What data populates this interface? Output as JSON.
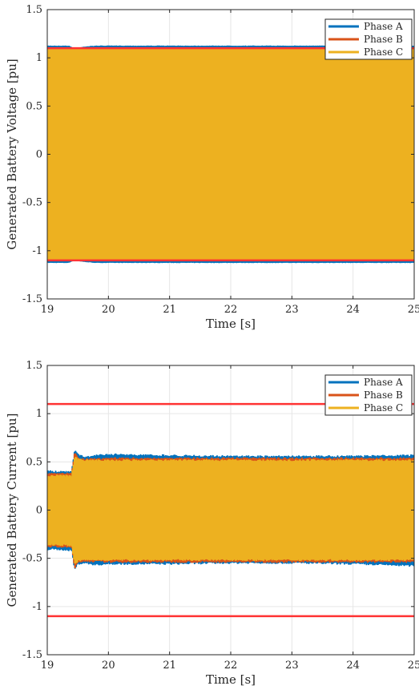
{
  "colors": {
    "phase_a": "#0072BD",
    "phase_b": "#D95319",
    "phase_c": "#EDB120",
    "limit": "#FF3333",
    "grid": "#E6E6E6",
    "axis": "#262626"
  },
  "chart_data": [
    {
      "type": "line",
      "title": "",
      "xlabel": "Time [s]",
      "ylabel": "Generated Battery Voltage [pu]",
      "xlim": [
        19,
        25
      ],
      "ylim": [
        -1.5,
        1.5
      ],
      "xticks": [
        19,
        20,
        21,
        22,
        23,
        24,
        25
      ],
      "yticks": [
        -1.5,
        -1,
        -0.5,
        0,
        0.5,
        1,
        1.5
      ],
      "xtick_labels": [
        "19",
        "20",
        "21",
        "22",
        "23",
        "24",
        "25"
      ],
      "ytick_labels": [
        "-1.5",
        "-1",
        "-0.5",
        "0",
        "0.5",
        "1",
        "1.5"
      ],
      "grid": true,
      "legend_position": "top-right",
      "legend": [
        "Phase A",
        "Phase B",
        "Phase C"
      ],
      "series": [
        {
          "name": "Phase A",
          "color": "#0072BD",
          "t": [
            19,
            19.2,
            19.35,
            19.45,
            19.5,
            19.6,
            19.8,
            20,
            21,
            22,
            23,
            24,
            25
          ],
          "upper": [
            1.12,
            1.12,
            1.12,
            1.09,
            1.1,
            1.11,
            1.12,
            1.12,
            1.12,
            1.12,
            1.12,
            1.12,
            1.12
          ],
          "lower": [
            -1.12,
            -1.12,
            -1.12,
            -1.09,
            -1.1,
            -1.11,
            -1.12,
            -1.12,
            -1.12,
            -1.12,
            -1.12,
            -1.12,
            -1.12
          ]
        },
        {
          "name": "Phase B",
          "color": "#D95319",
          "t": [
            19,
            20,
            21,
            22,
            23,
            24,
            25
          ],
          "upper": [
            1.1,
            1.1,
            1.1,
            1.1,
            1.1,
            1.1,
            1.1
          ],
          "lower": [
            -1.1,
            -1.1,
            -1.1,
            -1.1,
            -1.1,
            -1.1,
            -1.1
          ]
        },
        {
          "name": "Phase C",
          "color": "#EDB120",
          "t": [
            19,
            20,
            21,
            22,
            23,
            24,
            25
          ],
          "upper": [
            1.09,
            1.09,
            1.09,
            1.09,
            1.09,
            1.09,
            1.09
          ],
          "lower": [
            -1.09,
            -1.09,
            -1.09,
            -1.09,
            -1.09,
            -1.09,
            -1.09
          ]
        }
      ],
      "limit_lines": [
        1.1,
        -1.1
      ]
    },
    {
      "type": "line",
      "title": "",
      "xlabel": "Time [s]",
      "ylabel": "Generated Battery Current [pu]",
      "xlim": [
        19,
        25
      ],
      "ylim": [
        -1.5,
        1.5
      ],
      "xticks": [
        19,
        20,
        21,
        22,
        23,
        24,
        25
      ],
      "yticks": [
        -1.5,
        -1,
        -0.5,
        0,
        0.5,
        1,
        1.5
      ],
      "xtick_labels": [
        "19",
        "20",
        "21",
        "22",
        "23",
        "24",
        "25"
      ],
      "ytick_labels": [
        "-1.5",
        "-1",
        "-0.5",
        "0",
        "0.5",
        "1",
        "1.5"
      ],
      "grid": true,
      "legend_position": "top-right",
      "legend": [
        "Phase A",
        "Phase B",
        "Phase C"
      ],
      "series": [
        {
          "name": "Phase A",
          "color": "#0072BD",
          "t": [
            19,
            19.2,
            19.4,
            19.45,
            19.5,
            19.6,
            19.8,
            20,
            21,
            22,
            23,
            24,
            25
          ],
          "upper": [
            0.41,
            0.4,
            0.4,
            0.63,
            0.58,
            0.55,
            0.57,
            0.58,
            0.57,
            0.56,
            0.56,
            0.56,
            0.57
          ],
          "lower": [
            -0.41,
            -0.41,
            -0.42,
            -0.62,
            -0.56,
            -0.55,
            -0.57,
            -0.56,
            -0.56,
            -0.55,
            -0.55,
            -0.56,
            -0.58
          ]
        },
        {
          "name": "Phase B",
          "color": "#D95319",
          "t": [
            19,
            19.4,
            19.45,
            19.5,
            19.6,
            20,
            21,
            22,
            23,
            24,
            25
          ],
          "upper": [
            0.38,
            0.38,
            0.6,
            0.55,
            0.53,
            0.54,
            0.54,
            0.54,
            0.54,
            0.54,
            0.54
          ],
          "lower": [
            -0.38,
            -0.39,
            -0.6,
            -0.55,
            -0.53,
            -0.54,
            -0.54,
            -0.54,
            -0.54,
            -0.54,
            -0.54
          ]
        },
        {
          "name": "Phase C",
          "color": "#EDB120",
          "t": [
            19,
            19.4,
            19.45,
            19.5,
            19.6,
            20,
            21,
            22,
            23,
            24,
            25
          ],
          "upper": [
            0.36,
            0.36,
            0.56,
            0.53,
            0.52,
            0.52,
            0.52,
            0.52,
            0.52,
            0.52,
            0.52
          ],
          "lower": [
            -0.36,
            -0.37,
            -0.57,
            -0.53,
            -0.52,
            -0.52,
            -0.52,
            -0.52,
            -0.52,
            -0.52,
            -0.52
          ]
        }
      ],
      "limit_lines": [
        1.1,
        -1.1
      ]
    }
  ]
}
